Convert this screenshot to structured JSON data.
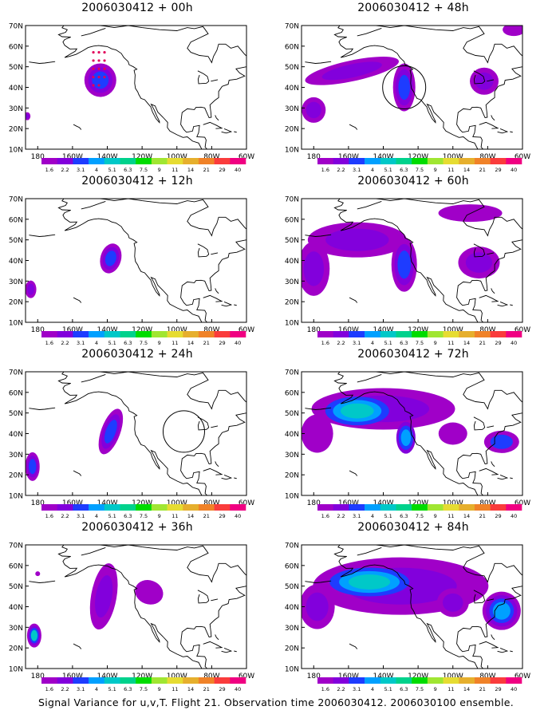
{
  "panels": [
    {
      "title": "2006030412 + 00h"
    },
    {
      "title": "2006030412 + 48h"
    },
    {
      "title": "2006030412 + 12h"
    },
    {
      "title": "2006030412 + 60h"
    },
    {
      "title": "2006030412 + 24h"
    },
    {
      "title": "2006030412 + 72h"
    },
    {
      "title": "2006030412 + 36h"
    },
    {
      "title": "2006030412 + 84h"
    }
  ],
  "axes": {
    "lat_labels": [
      "70N",
      "60N",
      "50N",
      "40N",
      "30N",
      "20N",
      "10N"
    ],
    "lon_labels": [
      "180",
      "160W",
      "140W",
      "120W",
      "100W",
      "80W",
      "60W"
    ]
  },
  "colorbar": {
    "labels": [
      "1.6",
      "2.2",
      "3.1",
      "4",
      "5.1",
      "6.3",
      "7.5",
      "9",
      "11",
      "14",
      "21",
      "29",
      "40"
    ],
    "colors": [
      "#a000c8",
      "#8200dc",
      "#1e3cff",
      "#00a0ff",
      "#00c8c8",
      "#00d28c",
      "#00dc00",
      "#a0e632",
      "#e6dc32",
      "#e6af2d",
      "#f08228",
      "#fa3c3c",
      "#f00082"
    ]
  },
  "footer": "Signal Variance for u,v,T. Flight 21. Observation time 2006030412. 2006030100 ensemble."
}
